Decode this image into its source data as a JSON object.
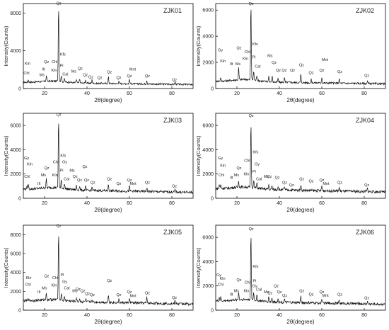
{
  "chart_data": [
    {
      "type": "line",
      "sample": "ZJK01",
      "xlabel": "2θ(degree)",
      "ylabel": "Intensity(Counts)",
      "xlim": [
        10,
        90
      ],
      "ylim": [
        0,
        9000
      ],
      "xticks": [
        20,
        40,
        60,
        80
      ],
      "yticks": [
        0,
        4000,
        8000
      ],
      "baseline": 650,
      "peaks": [
        [
          12.4,
          250
        ],
        [
          20.9,
          600
        ],
        [
          26.6,
          8200
        ],
        [
          27.9,
          700
        ],
        [
          29.4,
          300
        ],
        [
          35.0,
          350
        ],
        [
          36.5,
          450
        ],
        [
          39.4,
          350
        ],
        [
          42.4,
          400
        ],
        [
          50.1,
          700
        ],
        [
          55.0,
          280
        ],
        [
          60.0,
          500
        ],
        [
          68.2,
          400
        ],
        [
          81.5,
          250
        ]
      ],
      "annotations": [
        {
          "text": "Kln",
          "x": 12.0,
          "y": 2500
        },
        {
          "text": "Chl",
          "x": 11.5,
          "y": 1500
        },
        {
          "text": "Ilt",
          "x": 19.5,
          "y": 1900
        },
        {
          "text": "Ms",
          "x": 18.8,
          "y": 1300
        },
        {
          "text": "Qz",
          "x": 20.9,
          "y": 2700
        },
        {
          "text": "Chl",
          "x": 24.7,
          "y": 2700
        },
        {
          "text": "Kln",
          "x": 24.5,
          "y": 1800
        },
        {
          "text": "Qz",
          "x": 26.7,
          "y": 8900
        },
        {
          "text": "Kfs",
          "x": 28.6,
          "y": 3500
        },
        {
          "text": "Pl",
          "x": 28.0,
          "y": 2300
        },
        {
          "text": "Cal",
          "x": 29.8,
          "y": 1400
        },
        {
          "text": "Ms",
          "x": 33.8,
          "y": 1700
        },
        {
          "text": "Qz",
          "x": 36.8,
          "y": 2000
        },
        {
          "text": "Qz",
          "x": 39.2,
          "y": 1300
        },
        {
          "text": "Qz",
          "x": 41.8,
          "y": 1100
        },
        {
          "text": "Qz",
          "x": 46.0,
          "y": 1000
        },
        {
          "text": "Qz",
          "x": 50.6,
          "y": 1600
        },
        {
          "text": "Qz",
          "x": 55.0,
          "y": 1000
        },
        {
          "text": "Mnt",
          "x": 61.5,
          "y": 1900
        },
        {
          "text": "Qz",
          "x": 60.0,
          "y": 1200
        },
        {
          "text": "Qz",
          "x": 68.5,
          "y": 1200
        },
        {
          "text": "Qz",
          "x": 81.2,
          "y": 800
        }
      ]
    },
    {
      "type": "line",
      "sample": "ZJK02",
      "xlabel": "2θ(degree)",
      "ylabel": "Intensity(Counts)",
      "xlim": [
        10,
        90
      ],
      "ylim": [
        0,
        6500
      ],
      "xticks": [
        20,
        40,
        60,
        80
      ],
      "yticks": [
        0,
        2000,
        4000,
        6000
      ],
      "baseline": 550,
      "peaks": [
        [
          12.3,
          300
        ],
        [
          20.8,
          900
        ],
        [
          26.6,
          5900
        ],
        [
          27.9,
          700
        ],
        [
          29.4,
          400
        ],
        [
          35.0,
          450
        ],
        [
          36.6,
          450
        ],
        [
          39.4,
          300
        ],
        [
          42.4,
          350
        ],
        [
          50.1,
          650
        ],
        [
          55.0,
          250
        ],
        [
          60.0,
          450
        ],
        [
          68.2,
          300
        ],
        [
          81.5,
          200
        ]
      ],
      "annotations": [
        {
          "text": "Gy",
          "x": 12.2,
          "y": 2850
        },
        {
          "text": "Kln",
          "x": 13.4,
          "y": 2000
        },
        {
          "text": "Ilt",
          "x": 17.4,
          "y": 1800
        },
        {
          "text": "Ms",
          "x": 20.5,
          "y": 1800
        },
        {
          "text": "Qz",
          "x": 21.0,
          "y": 3000
        },
        {
          "text": "Chl",
          "x": 24.9,
          "y": 2700
        },
        {
          "text": "Kln",
          "x": 24.0,
          "y": 2200
        },
        {
          "text": "Qz",
          "x": 26.7,
          "y": 6400
        },
        {
          "text": "Kfs",
          "x": 28.6,
          "y": 3300
        },
        {
          "text": "Pl",
          "x": 28.0,
          "y": 2300
        },
        {
          "text": "Cal",
          "x": 29.8,
          "y": 1600
        },
        {
          "text": "Ms",
          "x": 35.6,
          "y": 2400
        },
        {
          "text": "Qz",
          "x": 37.5,
          "y": 1900
        },
        {
          "text": "Qz",
          "x": 39.5,
          "y": 1300
        },
        {
          "text": "Qz",
          "x": 42.3,
          "y": 1300
        },
        {
          "text": "Qz",
          "x": 46.2,
          "y": 1300
        },
        {
          "text": "Qz",
          "x": 50.5,
          "y": 1700
        },
        {
          "text": "Qz",
          "x": 55.0,
          "y": 1100
        },
        {
          "text": "Mnt",
          "x": 61.5,
          "y": 2100
        },
        {
          "text": "Qz",
          "x": 60.0,
          "y": 1300
        },
        {
          "text": "Qz",
          "x": 68.5,
          "y": 1200
        },
        {
          "text": "Qz",
          "x": 81.2,
          "y": 900
        }
      ]
    },
    {
      "type": "line",
      "sample": "ZJK03",
      "xlabel": "2θ(degree)",
      "ylabel": "Intensity(Counts)",
      "xlim": [
        10,
        90
      ],
      "ylim": [
        0,
        7000
      ],
      "xticks": [
        20,
        40,
        60,
        80
      ],
      "yticks": [
        0,
        2000,
        4000,
        6000
      ],
      "baseline": 750,
      "peaks": [
        [
          11.7,
          300
        ],
        [
          12.4,
          350
        ],
        [
          20.8,
          700
        ],
        [
          26.6,
          5800
        ],
        [
          27.9,
          700
        ],
        [
          29.4,
          400
        ],
        [
          35.0,
          400
        ],
        [
          36.5,
          350
        ],
        [
          39.4,
          300
        ],
        [
          42.4,
          300
        ],
        [
          50.1,
          500
        ],
        [
          60.0,
          400
        ],
        [
          68.2,
          300
        ],
        [
          81.5,
          200
        ]
      ],
      "annotations": [
        {
          "text": "Gy",
          "x": 11.5,
          "y": 3200
        },
        {
          "text": "Kln",
          "x": 13.0,
          "y": 2700
        },
        {
          "text": "Chl",
          "x": 11.8,
          "y": 1700
        },
        {
          "text": "Ilt",
          "x": 17.4,
          "y": 1100
        },
        {
          "text": "Ms",
          "x": 19.5,
          "y": 1800
        },
        {
          "text": "Qz",
          "x": 21.0,
          "y": 2400
        },
        {
          "text": "Chl",
          "x": 25.3,
          "y": 2900
        },
        {
          "text": "Kln",
          "x": 24.9,
          "y": 1800
        },
        {
          "text": "Qz",
          "x": 26.7,
          "y": 6800
        },
        {
          "text": "Kfs",
          "x": 28.8,
          "y": 3400
        },
        {
          "text": "Gy",
          "x": 29.5,
          "y": 2900
        },
        {
          "text": "Pl",
          "x": 28.0,
          "y": 2200
        },
        {
          "text": "Cal",
          "x": 30.4,
          "y": 1500
        },
        {
          "text": "Ms",
          "x": 33.0,
          "y": 2200
        },
        {
          "text": "Qz",
          "x": 34.4,
          "y": 1700
        },
        {
          "text": "Qz",
          "x": 36.5,
          "y": 1400
        },
        {
          "text": "Qz",
          "x": 39.0,
          "y": 2500
        },
        {
          "text": "Qz",
          "x": 39.8,
          "y": 1400
        },
        {
          "text": "Qz",
          "x": 42.7,
          "y": 1200
        },
        {
          "text": "Qz",
          "x": 50.6,
          "y": 1500
        },
        {
          "text": "Qz",
          "x": 55.0,
          "y": 1100
        },
        {
          "text": "Qz",
          "x": 60.0,
          "y": 1400
        },
        {
          "text": "Mnt",
          "x": 61.7,
          "y": 1100
        },
        {
          "text": "Qz",
          "x": 68.5,
          "y": 1200
        },
        {
          "text": "Qz",
          "x": 81.2,
          "y": 900
        }
      ]
    },
    {
      "type": "line",
      "sample": "ZJK04",
      "xlabel": "2θ(degree)",
      "ylabel": "Intensity(Counts)",
      "xlim": [
        10,
        90
      ],
      "ylim": [
        0,
        7000
      ],
      "xticks": [
        20,
        40,
        60,
        80
      ],
      "yticks": [
        0,
        2000,
        4000,
        6000
      ],
      "baseline": 800,
      "peaks": [
        [
          11.7,
          350
        ],
        [
          12.4,
          300
        ],
        [
          20.8,
          600
        ],
        [
          26.6,
          5400
        ],
        [
          27.9,
          650
        ],
        [
          29.4,
          400
        ],
        [
          35.0,
          400
        ],
        [
          36.5,
          350
        ],
        [
          39.4,
          350
        ],
        [
          42.4,
          300
        ],
        [
          50.1,
          500
        ],
        [
          60.0,
          400
        ],
        [
          68.2,
          300
        ],
        [
          81.5,
          250
        ]
      ],
      "annotations": [
        {
          "text": "Gy",
          "x": 12.2,
          "y": 3200
        },
        {
          "text": "Kln",
          "x": 13.4,
          "y": 2600
        },
        {
          "text": "Chl",
          "x": 12.7,
          "y": 1800
        },
        {
          "text": "Ilt",
          "x": 17.4,
          "y": 1600
        },
        {
          "text": "Ms",
          "x": 19.8,
          "y": 1800
        },
        {
          "text": "Qz",
          "x": 21.0,
          "y": 2400
        },
        {
          "text": "Chl",
          "x": 24.8,
          "y": 3000
        },
        {
          "text": "Kln",
          "x": 24.5,
          "y": 1900
        },
        {
          "text": "Qz",
          "x": 26.7,
          "y": 6700
        },
        {
          "text": "Kfs",
          "x": 28.8,
          "y": 3700
        },
        {
          "text": "Gy",
          "x": 29.5,
          "y": 2700
        },
        {
          "text": "Pl",
          "x": 28.1,
          "y": 2100
        },
        {
          "text": "Cal",
          "x": 30.4,
          "y": 1500
        },
        {
          "text": "Ms",
          "x": 33.8,
          "y": 1700
        },
        {
          "text": "Qz",
          "x": 35.3,
          "y": 1700
        },
        {
          "text": "Qz",
          "x": 39.0,
          "y": 1600
        },
        {
          "text": "Qz",
          "x": 42.5,
          "y": 1200
        },
        {
          "text": "Qz",
          "x": 45.7,
          "y": 1000
        },
        {
          "text": "Qz",
          "x": 50.6,
          "y": 1500
        },
        {
          "text": "Qz",
          "x": 55.0,
          "y": 1300
        },
        {
          "text": "Qz",
          "x": 60.0,
          "y": 1400
        },
        {
          "text": "Mnt",
          "x": 62.0,
          "y": 1100
        },
        {
          "text": "Qz",
          "x": 68.5,
          "y": 1200
        },
        {
          "text": "Qz",
          "x": 81.2,
          "y": 1000
        }
      ]
    },
    {
      "type": "line",
      "sample": "ZJK05",
      "xlabel": "2θ(degree)",
      "ylabel": "Intensity(Counts)",
      "xlim": [
        10,
        90
      ],
      "ylim": [
        0,
        9000
      ],
      "xticks": [
        20,
        40,
        60,
        80
      ],
      "yticks": [
        0,
        2000,
        4000,
        6000,
        8000
      ],
      "baseline": 1000,
      "peaks": [
        [
          12.4,
          300
        ],
        [
          20.8,
          800
        ],
        [
          26.6,
          7300
        ],
        [
          27.9,
          700
        ],
        [
          29.4,
          400
        ],
        [
          35.0,
          400
        ],
        [
          36.5,
          350
        ],
        [
          39.4,
          350
        ],
        [
          42.4,
          300
        ],
        [
          50.1,
          900
        ],
        [
          55.0,
          300
        ],
        [
          60.0,
          500
        ],
        [
          68.2,
          600
        ],
        [
          81.5,
          300
        ]
      ],
      "annotations": [
        {
          "text": "Kln",
          "x": 12.5,
          "y": 3300
        },
        {
          "text": "Chl",
          "x": 12.2,
          "y": 2600
        },
        {
          "text": "Ilt",
          "x": 17.4,
          "y": 1800
        },
        {
          "text": "Ms",
          "x": 19.9,
          "y": 2200
        },
        {
          "text": "Qz",
          "x": 21.0,
          "y": 3500
        },
        {
          "text": "Chl",
          "x": 25.0,
          "y": 3300
        },
        {
          "text": "Kln",
          "x": 24.5,
          "y": 2500
        },
        {
          "text": "Qz",
          "x": 26.7,
          "y": 8800
        },
        {
          "text": "Pl",
          "x": 28.3,
          "y": 3600
        },
        {
          "text": "Gy",
          "x": 29.5,
          "y": 2900
        },
        {
          "text": "Cal",
          "x": 30.5,
          "y": 2200
        },
        {
          "text": "Ms",
          "x": 34.3,
          "y": 1900
        },
        {
          "text": "Qz",
          "x": 35.8,
          "y": 2100
        },
        {
          "text": "Qz",
          "x": 38.0,
          "y": 1900
        },
        {
          "text": "Qz",
          "x": 40.2,
          "y": 1600
        },
        {
          "text": "Qz",
          "x": 42.5,
          "y": 1500
        },
        {
          "text": "Qz",
          "x": 50.6,
          "y": 3000
        },
        {
          "text": "Qz",
          "x": 55.0,
          "y": 1500
        },
        {
          "text": "Qz",
          "x": 60.0,
          "y": 1800
        },
        {
          "text": "Mnt",
          "x": 61.7,
          "y": 1400
        },
        {
          "text": "Qz",
          "x": 68.5,
          "y": 1700
        },
        {
          "text": "Qz",
          "x": 81.2,
          "y": 1200
        }
      ]
    },
    {
      "type": "line",
      "sample": "ZJK06",
      "xlabel": "2θ(degree)",
      "ylabel": "Intensity(Counts)",
      "xlim": [
        10,
        90
      ],
      "ylim": [
        0,
        7000
      ],
      "xticks": [
        20,
        40,
        60,
        80
      ],
      "yticks": [
        0,
        2000,
        4000,
        6000
      ],
      "baseline": 750,
      "peaks": [
        [
          11.7,
          300
        ],
        [
          12.4,
          300
        ],
        [
          20.8,
          650
        ],
        [
          26.6,
          5500
        ],
        [
          27.9,
          650
        ],
        [
          29.4,
          400
        ],
        [
          35.0,
          400
        ],
        [
          36.5,
          350
        ],
        [
          39.4,
          350
        ],
        [
          42.4,
          300
        ],
        [
          50.1,
          550
        ],
        [
          60.0,
          400
        ],
        [
          68.2,
          300
        ],
        [
          81.5,
          200
        ]
      ],
      "annotations": [
        {
          "text": "Gy",
          "x": 11.5,
          "y": 2800
        },
        {
          "text": "Kln",
          "x": 13.2,
          "y": 2500
        },
        {
          "text": "Chl",
          "x": 12.3,
          "y": 2000
        },
        {
          "text": "Ilt",
          "x": 17.4,
          "y": 1200
        },
        {
          "text": "Ms",
          "x": 19.8,
          "y": 1500
        },
        {
          "text": "Qz",
          "x": 21.0,
          "y": 2400
        },
        {
          "text": "Chl",
          "x": 24.9,
          "y": 2200
        },
        {
          "text": "Kln",
          "x": 24.5,
          "y": 1500
        },
        {
          "text": "Qz",
          "x": 26.7,
          "y": 6600
        },
        {
          "text": "Kfs",
          "x": 28.8,
          "y": 3500
        },
        {
          "text": "Pl",
          "x": 28.3,
          "y": 2300
        },
        {
          "text": "Gy",
          "x": 28.4,
          "y": 1900
        },
        {
          "text": "Cal",
          "x": 30.4,
          "y": 1600
        },
        {
          "text": "Ms",
          "x": 33.9,
          "y": 1400
        },
        {
          "text": "Qz",
          "x": 35.6,
          "y": 1300
        },
        {
          "text": "Qz",
          "x": 38.5,
          "y": 1900
        },
        {
          "text": "Qz",
          "x": 40.0,
          "y": 1400
        },
        {
          "text": "Qz",
          "x": 42.5,
          "y": 1100
        },
        {
          "text": "Qz",
          "x": 50.6,
          "y": 1500
        },
        {
          "text": "Qz",
          "x": 55.0,
          "y": 1200
        },
        {
          "text": "Qz",
          "x": 60.0,
          "y": 1400
        },
        {
          "text": "Mnt",
          "x": 61.7,
          "y": 1100
        },
        {
          "text": "Qz",
          "x": 68.5,
          "y": 1200
        },
        {
          "text": "Qz",
          "x": 81.2,
          "y": 900
        }
      ]
    }
  ]
}
